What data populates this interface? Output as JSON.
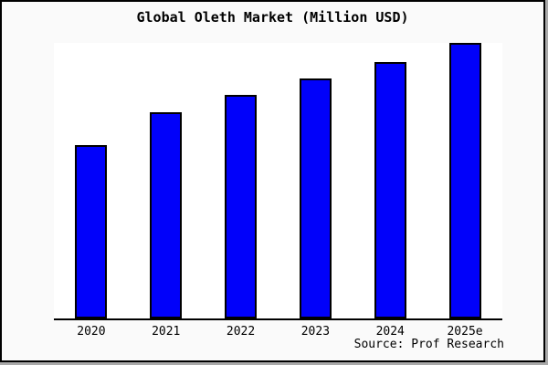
{
  "title": "Global Oleth Market (Million USD)",
  "source": "Source: Prof Research",
  "frame": {
    "background": "#fafafa",
    "plot_background": "#ffffff",
    "border_color": "#000000",
    "shadow_color": "#a9a9a9"
  },
  "chart_data": {
    "type": "bar",
    "title": "Global Oleth Market (Million USD)",
    "categories": [
      "2020",
      "2021",
      "2022",
      "2023",
      "2024",
      "2025e"
    ],
    "values": [
      63,
      75,
      81,
      87,
      93,
      100
    ],
    "value_scale": "relative index estimated from bar heights (no y-axis labels shown; 2025e = 100)",
    "xlabel": "",
    "ylabel": "",
    "ylim": [
      0,
      100
    ],
    "grid": false,
    "legend": null,
    "bar_color": "#0101fa",
    "bar_border_color": "#000000",
    "annotations": [
      "Source: Prof Research"
    ]
  }
}
